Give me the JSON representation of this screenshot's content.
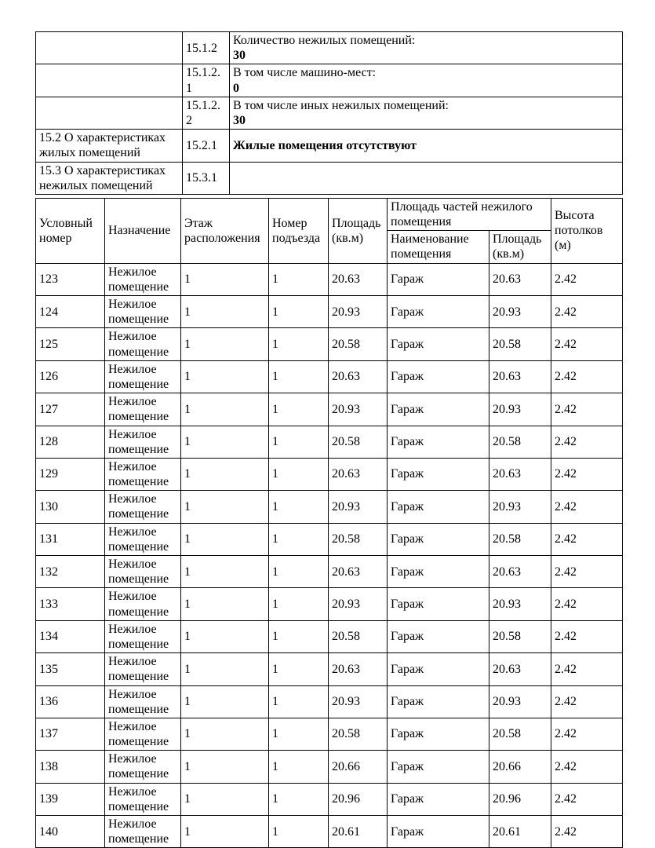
{
  "colors": {
    "background": "#ffffff",
    "text": "#000000",
    "border": "#000000"
  },
  "info_table": {
    "rows": [
      {
        "section": "",
        "code": "15.1.2",
        "label": "Количество нежилых помещений:",
        "value": "30"
      },
      {
        "section": "",
        "code": "15.1.2.1",
        "label": "В том числе машино-мест:",
        "value": "0"
      },
      {
        "section": "",
        "code": "15.1.2.2",
        "label": "В том числе иных нежилых помещений:",
        "value": "30"
      },
      {
        "section": "15.2 О характеристиках жилых помещений",
        "code": "15.2.1",
        "label": "",
        "value": "Жилые помещения отсутствуют"
      },
      {
        "section": "15.3 О характеристиках нежилых помещений",
        "code": "15.3.1",
        "label": "",
        "value": ""
      }
    ]
  },
  "premises_table": {
    "headers": {
      "unit_number": "Условный номер",
      "purpose": "Назначение",
      "floor": "Этаж расположения",
      "entrance": "Номер подъезда",
      "area": "Площадь (кв.м)",
      "parts_group": "Площадь частей нежилого помещения",
      "part_name": "Наименование помещения",
      "part_area": "Площадь (кв.м)",
      "ceiling_height": "Высота потолков (м)"
    },
    "column_keys": [
      "unit-number",
      "purpose",
      "floor",
      "entrance",
      "area",
      "part-name",
      "part-area",
      "ceiling-height"
    ],
    "rows": [
      [
        "123",
        "Нежилое помещение",
        "1",
        "1",
        "20.63",
        "Гараж",
        "20.63",
        "2.42"
      ],
      [
        "124",
        "Нежилое помещение",
        "1",
        "1",
        "20.93",
        "Гараж",
        "20.93",
        "2.42"
      ],
      [
        "125",
        "Нежилое помещение",
        "1",
        "1",
        "20.58",
        "Гараж",
        "20.58",
        "2.42"
      ],
      [
        "126",
        "Нежилое помещение",
        "1",
        "1",
        "20.63",
        "Гараж",
        "20.63",
        "2.42"
      ],
      [
        "127",
        "Нежилое помещение",
        "1",
        "1",
        "20.93",
        "Гараж",
        "20.93",
        "2.42"
      ],
      [
        "128",
        "Нежилое помещение",
        "1",
        "1",
        "20.58",
        "Гараж",
        "20.58",
        "2.42"
      ],
      [
        "129",
        "Нежилое помещение",
        "1",
        "1",
        "20.63",
        "Гараж",
        "20.63",
        "2.42"
      ],
      [
        "130",
        "Нежилое помещение",
        "1",
        "1",
        "20.93",
        "Гараж",
        "20.93",
        "2.42"
      ],
      [
        "131",
        "Нежилое помещение",
        "1",
        "1",
        "20.58",
        "Гараж",
        "20.58",
        "2.42"
      ],
      [
        "132",
        "Нежилое помещение",
        "1",
        "1",
        "20.63",
        "Гараж",
        "20.63",
        "2.42"
      ],
      [
        "133",
        "Нежилое помещение",
        "1",
        "1",
        "20.93",
        "Гараж",
        "20.93",
        "2.42"
      ],
      [
        "134",
        "Нежилое помещение",
        "1",
        "1",
        "20.58",
        "Гараж",
        "20.58",
        "2.42"
      ],
      [
        "135",
        "Нежилое помещение",
        "1",
        "1",
        "20.63",
        "Гараж",
        "20.63",
        "2.42"
      ],
      [
        "136",
        "Нежилое помещение",
        "1",
        "1",
        "20.93",
        "Гараж",
        "20.93",
        "2.42"
      ],
      [
        "137",
        "Нежилое помещение",
        "1",
        "1",
        "20.58",
        "Гараж",
        "20.58",
        "2.42"
      ],
      [
        "138",
        "Нежилое помещение",
        "1",
        "1",
        "20.66",
        "Гараж",
        "20.66",
        "2.42"
      ],
      [
        "139",
        "Нежилое помещение",
        "1",
        "1",
        "20.96",
        "Гараж",
        "20.96",
        "2.42"
      ],
      [
        "140",
        "Нежилое помещение",
        "1",
        "1",
        "20.61",
        "Гараж",
        "20.61",
        "2.42"
      ]
    ]
  }
}
